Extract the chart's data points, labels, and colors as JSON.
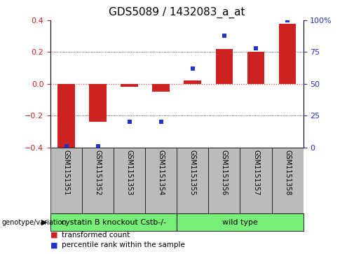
{
  "title": "GDS5089 / 1432083_a_at",
  "samples": [
    "GSM1151351",
    "GSM1151352",
    "GSM1151353",
    "GSM1151354",
    "GSM1151355",
    "GSM1151356",
    "GSM1151357",
    "GSM1151358"
  ],
  "bar_values": [
    -0.4,
    -0.24,
    -0.02,
    -0.05,
    0.02,
    0.22,
    0.2,
    0.38
  ],
  "dot_values_pct": [
    1,
    1,
    20,
    20,
    62,
    88,
    78,
    100
  ],
  "ylim_left": [
    -0.4,
    0.4
  ],
  "ylim_right": [
    0,
    100
  ],
  "yticks_left": [
    -0.4,
    -0.2,
    0.0,
    0.2,
    0.4
  ],
  "yticks_right": [
    0,
    25,
    50,
    75,
    100
  ],
  "ytick_labels_right": [
    "0",
    "25",
    "50",
    "75",
    "100%"
  ],
  "bar_color": "#cc2222",
  "dot_color": "#2233cc",
  "group1_label": "cystatin B knockout Cstb-/-",
  "group2_label": "wild type",
  "group1_indices": [
    0,
    1,
    2,
    3
  ],
  "group2_indices": [
    4,
    5,
    6,
    7
  ],
  "group_color": "#77ee77",
  "legend_label1": "transformed count",
  "legend_label2": "percentile rank within the sample",
  "left_label": "genotype/variation",
  "zero_line_color": "#ee4444",
  "dotted_line_color": "#222222",
  "bg_color": "#ffffff",
  "tick_area_bg": "#bbbbbb",
  "title_fontsize": 11,
  "tick_fontsize": 8,
  "label_fontsize": 7
}
